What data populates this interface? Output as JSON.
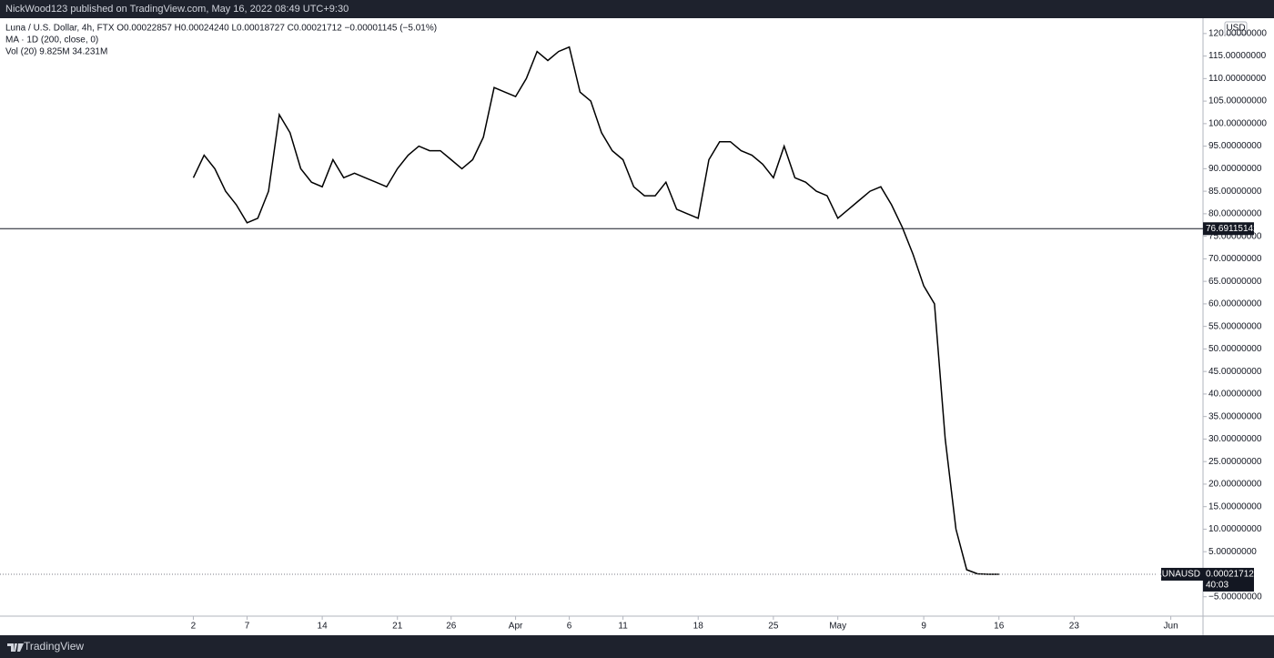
{
  "header": {
    "publisher": "NickWood123 published on TradingView.com, May 16, 2022 08:49 UTC+9:30"
  },
  "chart_data": {
    "type": "line",
    "legend": [
      "Luna / U.S. Dollar, 4h, FTX  O0.00022857  H0.00024240  L0.00018727  C0.00021712  −0.00001145 (−5.01%)",
      "MA · 1D (200, close, 0)",
      "Vol (20)  9.825M  34.231M"
    ],
    "currency": "USD",
    "color": "#000000",
    "x": [
      "03-02",
      "03-03",
      "03-04",
      "03-05",
      "03-06",
      "03-07",
      "03-08",
      "03-09",
      "03-10",
      "03-11",
      "03-12",
      "03-13",
      "03-14",
      "03-15",
      "03-16",
      "03-17",
      "03-18",
      "03-19",
      "03-20",
      "03-21",
      "03-22",
      "03-23",
      "03-24",
      "03-25",
      "03-26",
      "03-27",
      "03-28",
      "03-29",
      "03-30",
      "03-31",
      "04-01",
      "04-02",
      "04-03",
      "04-04",
      "04-05",
      "04-06",
      "04-07",
      "04-08",
      "04-09",
      "04-10",
      "04-11",
      "04-12",
      "04-13",
      "04-14",
      "04-15",
      "04-16",
      "04-17",
      "04-18",
      "04-19",
      "04-20",
      "04-21",
      "04-22",
      "04-23",
      "04-24",
      "04-25",
      "04-26",
      "04-27",
      "04-28",
      "04-29",
      "04-30",
      "05-01",
      "05-02",
      "05-03",
      "05-04",
      "05-05",
      "05-06",
      "05-07",
      "05-08",
      "05-09",
      "05-10",
      "05-11",
      "05-12",
      "05-13",
      "05-14",
      "05-15",
      "05-16"
    ],
    "values": [
      88,
      93,
      90,
      85,
      82,
      78,
      79,
      85,
      102,
      98,
      90,
      87,
      86,
      92,
      88,
      89,
      88,
      87,
      86,
      90,
      93,
      95,
      94,
      94,
      92,
      90,
      92,
      97,
      108,
      107,
      106,
      110,
      116,
      114,
      116,
      117,
      107,
      105,
      98,
      94,
      92,
      86,
      84,
      84,
      87,
      81,
      80,
      79,
      92,
      96,
      96,
      94,
      93,
      91,
      88,
      95,
      88,
      87,
      85,
      84,
      79,
      81,
      83,
      85,
      86,
      82,
      77,
      71,
      64,
      60,
      30,
      10,
      1,
      0.1,
      0.0002,
      0.00021712
    ],
    "xlim": [
      "02-12",
      "06-04"
    ],
    "xticks": [
      {
        "value": "03-02",
        "label": "2"
      },
      {
        "value": "03-07",
        "label": "7"
      },
      {
        "value": "03-14",
        "label": "14"
      },
      {
        "value": "03-21",
        "label": "21"
      },
      {
        "value": "03-26",
        "label": "26"
      },
      {
        "value": "04-01",
        "label": "Apr"
      },
      {
        "value": "04-06",
        "label": "6"
      },
      {
        "value": "04-11",
        "label": "11"
      },
      {
        "value": "04-18",
        "label": "18"
      },
      {
        "value": "04-25",
        "label": "25"
      },
      {
        "value": "05-01",
        "label": "May"
      },
      {
        "value": "05-09",
        "label": "9"
      },
      {
        "value": "05-16",
        "label": "16"
      },
      {
        "value": "05-23",
        "label": "23"
      },
      {
        "value": "06-01",
        "label": "Jun"
      }
    ],
    "ylim": [
      -9.3,
      123.4
    ],
    "yticks": [
      {
        "value": -5,
        "label": "−5.00000000"
      },
      {
        "value": 5,
        "label": "5.00000000"
      },
      {
        "value": 10,
        "label": "10.00000000"
      },
      {
        "value": 15,
        "label": "15.00000000"
      },
      {
        "value": 20,
        "label": "20.00000000"
      },
      {
        "value": 25,
        "label": "25.00000000"
      },
      {
        "value": 30,
        "label": "30.00000000"
      },
      {
        "value": 35,
        "label": "35.00000000"
      },
      {
        "value": 40,
        "label": "40.00000000"
      },
      {
        "value": 45,
        "label": "45.00000000"
      },
      {
        "value": 50,
        "label": "50.00000000"
      },
      {
        "value": 55,
        "label": "55.00000000"
      },
      {
        "value": 60,
        "label": "60.00000000"
      },
      {
        "value": 65,
        "label": "65.00000000"
      },
      {
        "value": 70,
        "label": "70.00000000"
      },
      {
        "value": 75,
        "label": "75.00000000"
      },
      {
        "value": 80,
        "label": "80.00000000"
      },
      {
        "value": 85,
        "label": "85.00000000"
      },
      {
        "value": 90,
        "label": "90.00000000"
      },
      {
        "value": 95,
        "label": "95.00000000"
      },
      {
        "value": 100,
        "label": "100.00000000"
      },
      {
        "value": 105,
        "label": "105.00000000"
      },
      {
        "value": 110,
        "label": "110.00000000"
      },
      {
        "value": 115,
        "label": "115.00000000"
      },
      {
        "value": 120,
        "label": "120.00000000"
      }
    ],
    "hline": 76.69115142,
    "last": {
      "value": 0.00021712,
      "symbol": "LUNAUSD",
      "countdown": "40:03"
    }
  },
  "footer": {
    "brand": "TradingView"
  }
}
